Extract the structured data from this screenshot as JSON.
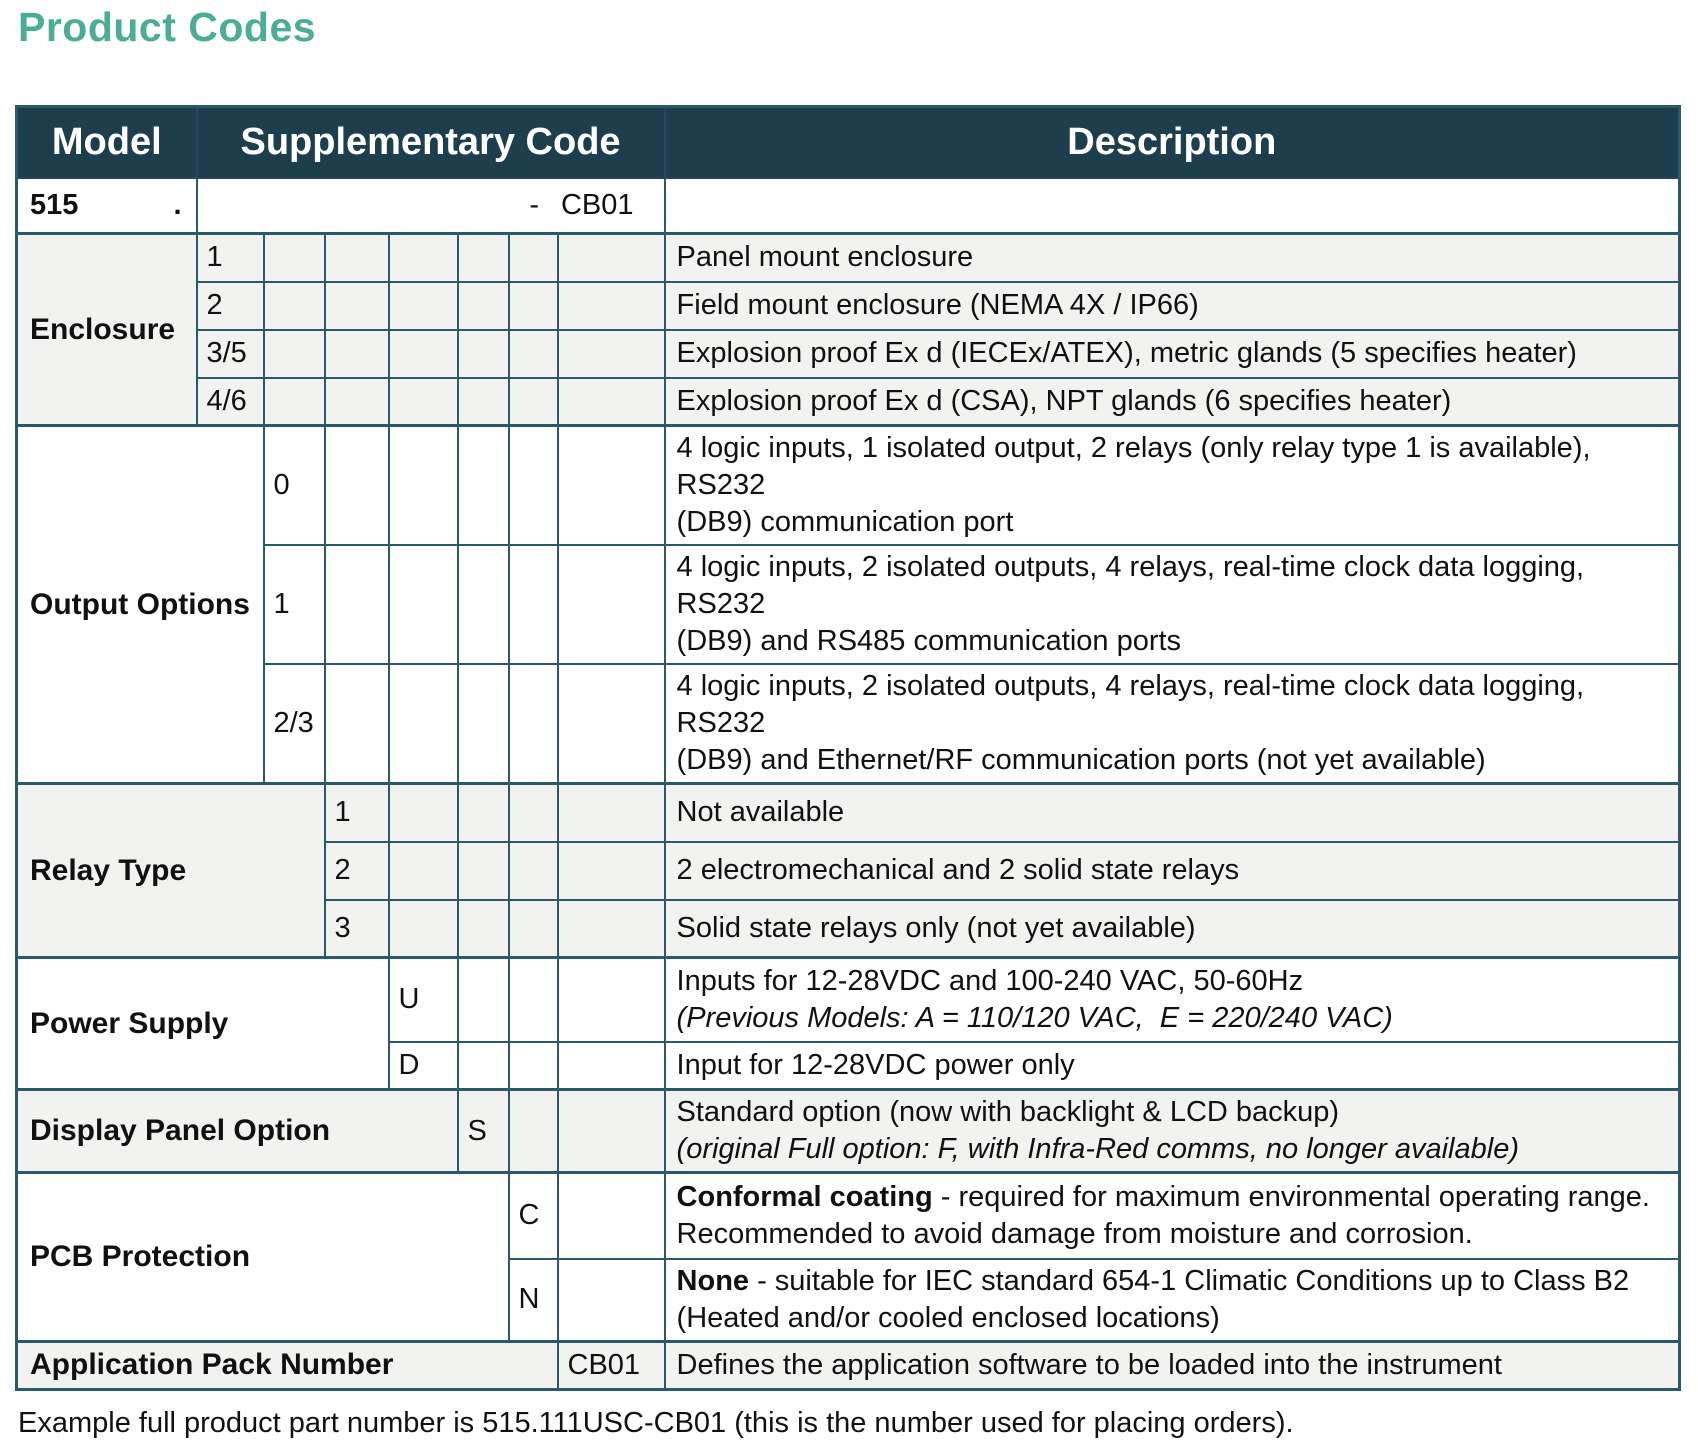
{
  "page": {
    "title": "Product Codes",
    "footer": "Example full product part number is 515.111USC-CB01 (this is the number used for placing orders)."
  },
  "colors": {
    "accent_teal": "#4cad97",
    "header_bg": "#1c3e4d",
    "border": "#2a5a68",
    "shaded_row_bg": "#f2f2f0"
  },
  "header": {
    "model": "Model",
    "supplementary": "Supplementary Code",
    "description": "Description"
  },
  "model_row": {
    "model": "515",
    "dot": ".",
    "dash": "-",
    "code": "CB01"
  },
  "sections": [
    {
      "label": "Enclosure",
      "rows": [
        {
          "code": "1",
          "line1": "Panel mount enclosure"
        },
        {
          "code": "2",
          "line1": "Field mount enclosure (NEMA 4X / IP66)"
        },
        {
          "code": "3/5",
          "line1": "Explosion proof Ex d (IECEx/ATEX), metric glands (5 specifies heater)"
        },
        {
          "code": "4/6",
          "line1": "Explosion proof Ex d (CSA), NPT glands (6 specifies heater)"
        }
      ]
    },
    {
      "label": "Output Options",
      "rows": [
        {
          "code": "0",
          "line1": "4 logic inputs, 1 isolated output, 2 relays (only relay type 1 is available), RS232",
          "line2": "(DB9) communication port"
        },
        {
          "code": "1",
          "line1": "4 logic inputs, 2 isolated outputs, 4 relays, real-time clock data logging, RS232",
          "line2": "(DB9) and RS485 communication ports"
        },
        {
          "code": "2/3",
          "line1": "4 logic inputs, 2 isolated outputs, 4 relays, real-time clock data logging, RS232",
          "line2": "(DB9) and Ethernet/RF communication ports (not yet available)"
        }
      ]
    },
    {
      "label": "Relay Type",
      "rows": [
        {
          "code": "1",
          "line1": "Not available"
        },
        {
          "code": "2",
          "line1": "2 electromechanical and 2 solid state relays"
        },
        {
          "code": "3",
          "line1": "Solid state relays only (not yet available)"
        }
      ]
    },
    {
      "label": "Power Supply",
      "rows": [
        {
          "code": "U",
          "line1": "Inputs for 12-28VDC and 100-240 VAC, 50-60Hz",
          "line2": "(Previous Models: A = 110/120 VAC,  E = 220/240 VAC)",
          "line2_italic": true
        },
        {
          "code": "D",
          "line1": "Input for 12-28VDC power only"
        }
      ]
    },
    {
      "label": "Display Panel Option",
      "rows": [
        {
          "code": "S",
          "line1": "Standard option (now with backlight & LCD backup)",
          "line2": "(original Full option: F, with Infra-Red comms, no longer available)",
          "line2_italic": true
        }
      ]
    },
    {
      "label": "PCB Protection",
      "rows": [
        {
          "code": "C",
          "lead": "Conformal coating",
          "line1": " - required for maximum environmental operating range.",
          "line2": "Recommended to avoid damage from moisture and corrosion."
        },
        {
          "code": "N",
          "lead": "None",
          "line1": " - suitable for IEC standard 654-1 Climatic Conditions up to Class B2",
          "line2": "(Heated and/or cooled enclosed locations)"
        }
      ]
    },
    {
      "label": "Application Pack Number",
      "rows": [
        {
          "code": "CB01",
          "line1": "Defines the application software to be loaded into the instrument"
        }
      ]
    }
  ]
}
